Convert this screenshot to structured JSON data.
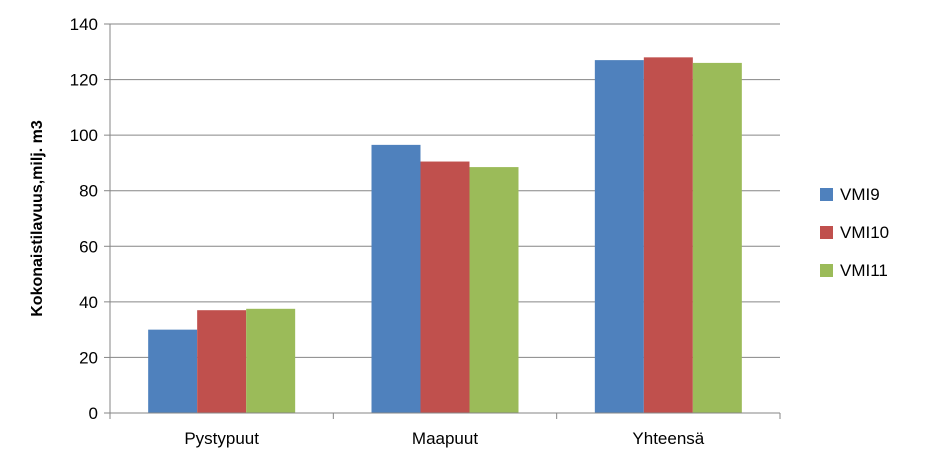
{
  "chart_data": {
    "type": "bar",
    "title": "",
    "xlabel": "",
    "ylabel": "Kokonaistilavuus,milj. m3",
    "categories": [
      "Pystypuut",
      "Maapuut",
      "Yhteensä"
    ],
    "series": [
      {
        "name": "VMI9",
        "color": "#4F81BD",
        "values": [
          30,
          96.5,
          127
        ]
      },
      {
        "name": "VMI10",
        "color": "#C0504D",
        "values": [
          37,
          90.5,
          128
        ]
      },
      {
        "name": "VMI11",
        "color": "#9BBB59",
        "values": [
          37.5,
          88.5,
          126
        ]
      }
    ],
    "ylim": [
      0,
      140
    ],
    "yticks": [
      0,
      20,
      40,
      60,
      80,
      100,
      120,
      140
    ],
    "grid": true,
    "legend": "right"
  }
}
